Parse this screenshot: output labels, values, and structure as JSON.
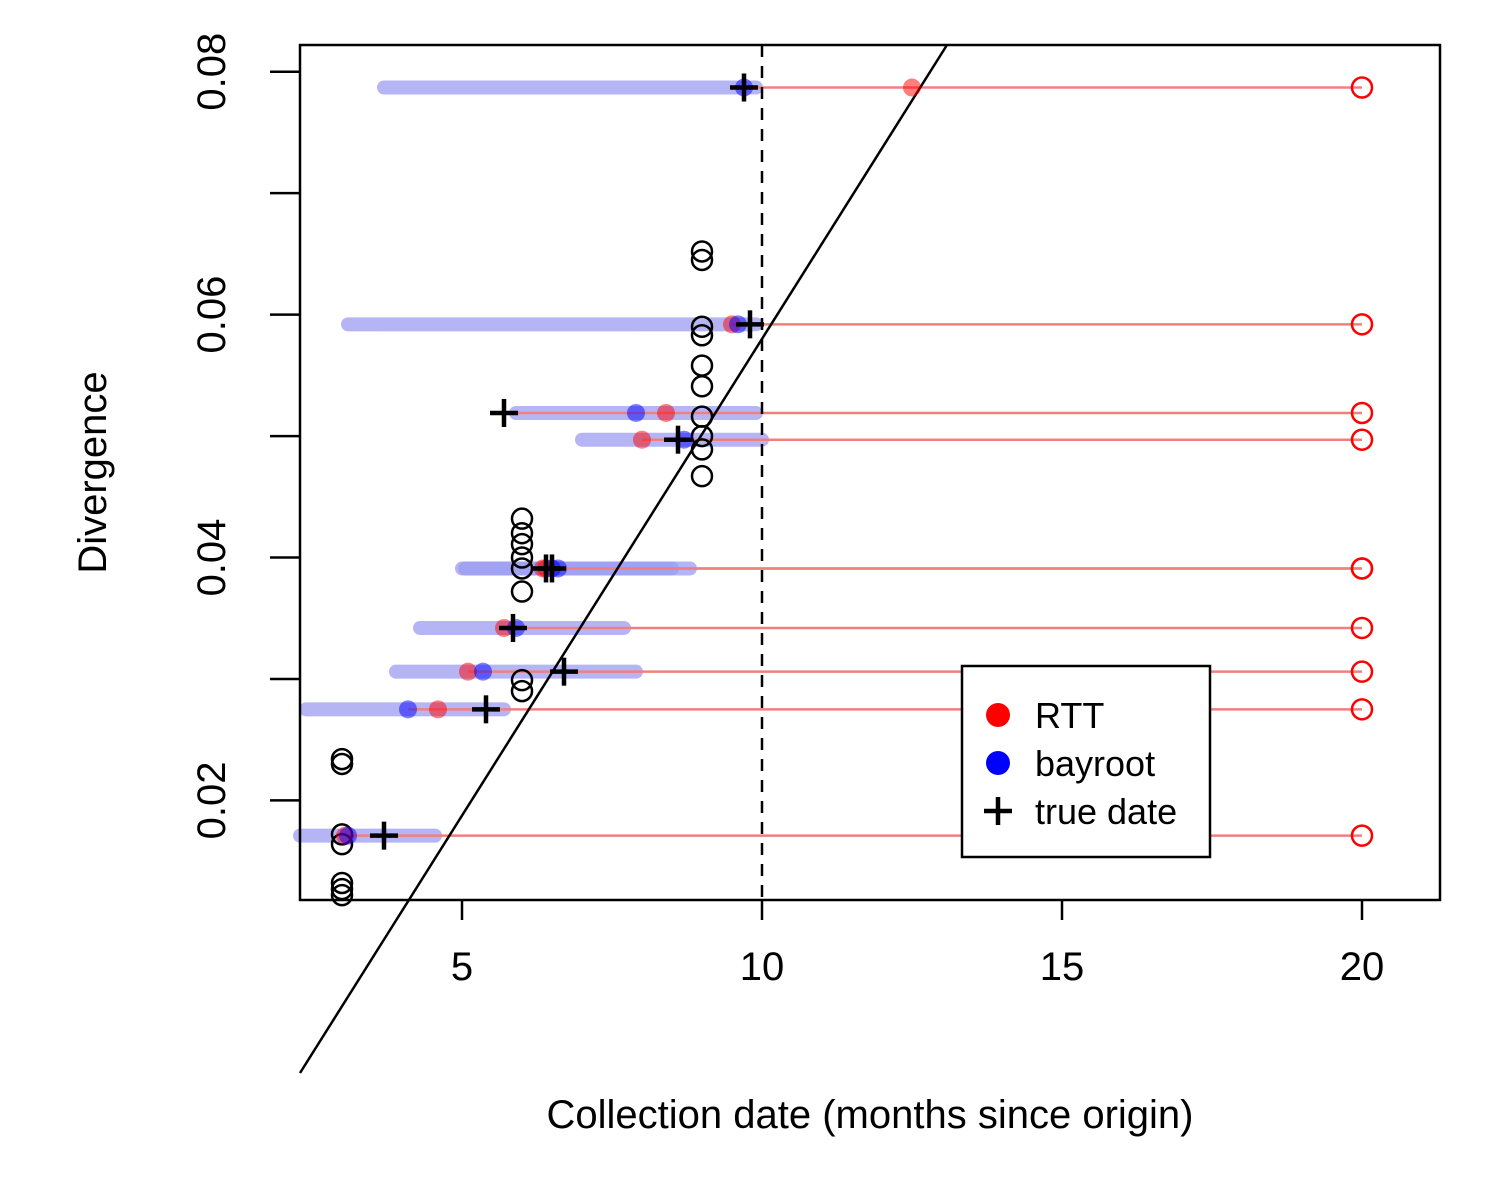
{
  "chart_data": {
    "type": "scatter",
    "xlabel": "Collection date (months since origin)",
    "ylabel": "Divergence",
    "xlim": [
      2.3,
      21.3
    ],
    "ylim": [
      0.0118,
      0.0822
    ],
    "x_ticks": [
      5,
      10,
      15,
      20
    ],
    "x_tick_labels": [
      "5",
      "10",
      "15",
      "20"
    ],
    "y_ticks": [
      0.02,
      0.03,
      0.04,
      0.05,
      0.06,
      0.07,
      0.08
    ],
    "y_tick_labels": [
      "0.02",
      "",
      "0.04",
      "",
      "0.06",
      "",
      "0.08"
    ],
    "grid": false,
    "cutoff_line": {
      "x": 10,
      "style": "dashed"
    },
    "regression_line": {
      "intercept": -0.0205,
      "slope": 0.00785
    },
    "observed_tips": [
      {
        "x": 3,
        "y": 0.0122
      },
      {
        "x": 3,
        "y": 0.0127
      },
      {
        "x": 3,
        "y": 0.0132
      },
      {
        "x": 3,
        "y": 0.0164
      },
      {
        "x": 3,
        "y": 0.0172
      },
      {
        "x": 3,
        "y": 0.023
      },
      {
        "x": 3,
        "y": 0.0234
      },
      {
        "x": 6,
        "y": 0.029
      },
      {
        "x": 6,
        "y": 0.0299
      },
      {
        "x": 6,
        "y": 0.0372
      },
      {
        "x": 6,
        "y": 0.0391
      },
      {
        "x": 6,
        "y": 0.04
      },
      {
        "x": 6,
        "y": 0.0411
      },
      {
        "x": 6,
        "y": 0.042
      },
      {
        "x": 6,
        "y": 0.0432
      },
      {
        "x": 9,
        "y": 0.0467
      },
      {
        "x": 9,
        "y": 0.0489
      },
      {
        "x": 9,
        "y": 0.05
      },
      {
        "x": 9,
        "y": 0.0516
      },
      {
        "x": 9,
        "y": 0.0541
      },
      {
        "x": 9,
        "y": 0.0558
      },
      {
        "x": 9,
        "y": 0.0583
      },
      {
        "x": 9,
        "y": 0.059
      },
      {
        "x": 9,
        "y": 0.0645
      },
      {
        "x": 9,
        "y": 0.0652
      }
    ],
    "censored_tips": [
      {
        "y": 0.0787,
        "censored_x": 20,
        "rtt": 12.5,
        "bayroot": 9.7,
        "true_date": 9.7,
        "interval": [
          3.7,
          9.9
        ]
      },
      {
        "y": 0.0592,
        "censored_x": 20,
        "rtt": 9.5,
        "bayroot": 9.6,
        "true_date": 9.8,
        "interval": [
          3.1,
          9.9
        ]
      },
      {
        "y": 0.0519,
        "censored_x": 20,
        "rtt": 8.4,
        "bayroot": 7.9,
        "true_date": 5.7,
        "interval": [
          5.9,
          9.9
        ]
      },
      {
        "y": 0.0497,
        "censored_x": 20,
        "rtt": 8.0,
        "bayroot": 8.7,
        "true_date": 8.6,
        "interval": [
          7.0,
          10.0
        ]
      },
      {
        "y": 0.0391,
        "censored_x": 20,
        "rtt": 6.35,
        "bayroot": 6.5,
        "true_date": 6.5,
        "interval": [
          5.0,
          8.8
        ]
      },
      {
        "y": 0.0391,
        "censored_x": 20,
        "rtt": 6.4,
        "bayroot": 6.6,
        "true_date": 6.4,
        "interval": [
          5.05,
          8.5
        ]
      },
      {
        "y": 0.0342,
        "censored_x": 20,
        "rtt": 5.7,
        "bayroot": 5.9,
        "true_date": 5.85,
        "interval": [
          4.3,
          7.7
        ]
      },
      {
        "y": 0.0306,
        "censored_x": 20,
        "rtt": 5.1,
        "bayroot": 5.35,
        "true_date": 6.7,
        "interval": [
          3.9,
          7.9
        ]
      },
      {
        "y": 0.0275,
        "censored_x": 20,
        "rtt": 4.6,
        "bayroot": 4.1,
        "true_date": 5.4,
        "interval": [
          2.4,
          5.7
        ]
      },
      {
        "y": 0.0171,
        "censored_x": 20,
        "rtt": 3.05,
        "bayroot": 3.1,
        "true_date": 3.7,
        "interval": [
          2.3,
          4.55
        ]
      }
    ],
    "legend": {
      "placement": "bottom-right",
      "entries": [
        {
          "label": "RTT",
          "symbol": "dot",
          "color": "#ff0000"
        },
        {
          "label": "bayroot",
          "symbol": "dot",
          "color": "#0000ff"
        },
        {
          "label": "true date",
          "symbol": "plus",
          "color": "#000000"
        }
      ]
    },
    "colors": {
      "rtt": "#ff0000",
      "bayroot": "#0000ff",
      "interval": "#9c9cf2",
      "observed": "#000000",
      "censor_line": "#f08080",
      "regression": "#000000"
    }
  }
}
